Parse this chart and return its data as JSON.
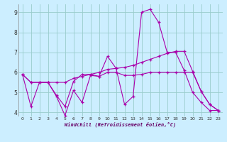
{
  "xlabel": "Windchill (Refroidissement éolien,°C)",
  "xlim": [
    -0.5,
    23.5
  ],
  "ylim": [
    3.8,
    9.4
  ],
  "xticks": [
    0,
    1,
    2,
    3,
    4,
    5,
    6,
    7,
    8,
    9,
    10,
    11,
    12,
    13,
    14,
    15,
    16,
    17,
    18,
    19,
    20,
    21,
    22,
    23
  ],
  "yticks": [
    4,
    5,
    6,
    7,
    8,
    9
  ],
  "bg_color": "#cceeff",
  "line_color": "#aa00aa",
  "grid_color": "#99cccc",
  "lines": [
    {
      "x": [
        0,
        1,
        2,
        3,
        4,
        5,
        6,
        7,
        8,
        9,
        10,
        11,
        12,
        13,
        14,
        15,
        16,
        17,
        18,
        19,
        20,
        21,
        22,
        23
      ],
      "y": [
        5.9,
        4.3,
        5.5,
        5.5,
        4.8,
        3.85,
        5.1,
        4.5,
        5.85,
        5.8,
        6.8,
        6.2,
        4.4,
        4.8,
        9.0,
        9.15,
        8.5,
        7.0,
        7.0,
        6.1,
        5.0,
        4.5,
        4.1,
        4.1
      ]
    },
    {
      "x": [
        0,
        1,
        2,
        3,
        4,
        5,
        6,
        7,
        8,
        9,
        10,
        11,
        12,
        13,
        14,
        15,
        16,
        17,
        18,
        19,
        20,
        21,
        22,
        23
      ],
      "y": [
        5.9,
        5.5,
        5.5,
        5.5,
        5.5,
        5.5,
        5.7,
        5.8,
        5.9,
        6.0,
        6.15,
        6.2,
        6.25,
        6.35,
        6.5,
        6.65,
        6.8,
        6.95,
        7.05,
        7.05,
        6.05,
        5.05,
        4.4,
        4.1
      ]
    },
    {
      "x": [
        0,
        1,
        2,
        3,
        4,
        5,
        6,
        7,
        8,
        9,
        10,
        11,
        12,
        13,
        14,
        15,
        16,
        17,
        18,
        19,
        20,
        21,
        22,
        23
      ],
      "y": [
        5.9,
        5.5,
        5.5,
        5.5,
        4.85,
        4.3,
        5.55,
        5.9,
        5.9,
        5.8,
        6.0,
        6.0,
        5.85,
        5.85,
        5.9,
        6.0,
        6.0,
        6.0,
        6.0,
        6.0,
        6.0,
        5.05,
        4.4,
        4.1
      ]
    }
  ]
}
